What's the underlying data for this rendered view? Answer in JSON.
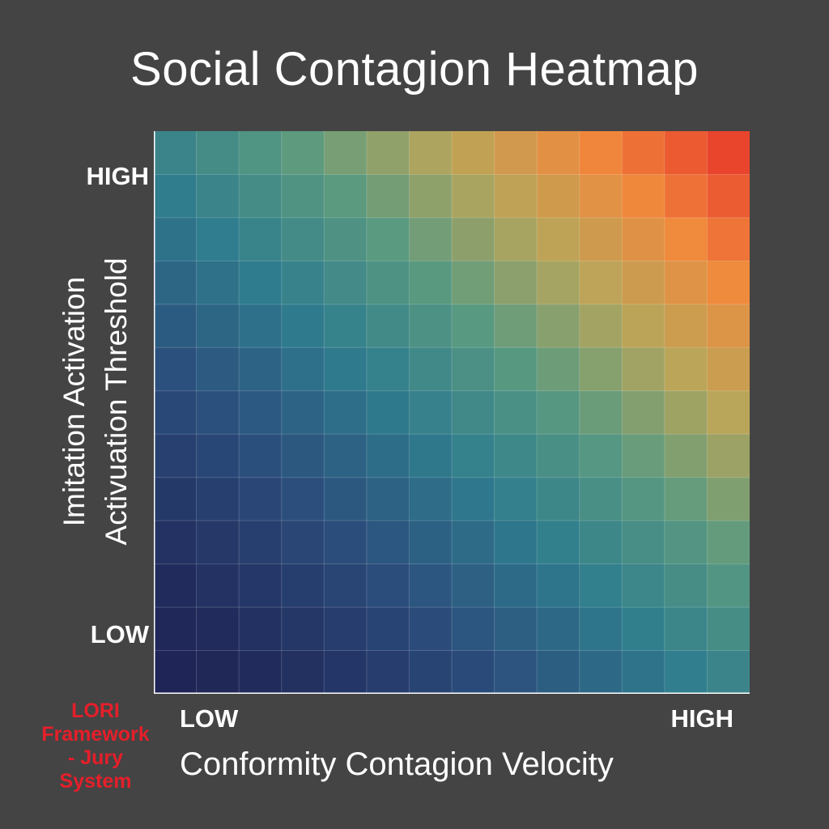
{
  "title": "Social Contagion Heatmap",
  "chart_data": {
    "type": "heatmap",
    "rows": 13,
    "cols": 14,
    "x_axis": {
      "label": "Conformity Contagion Velocity",
      "tick_low": "LOW",
      "tick_high": "HIGH"
    },
    "y_axis": {
      "label_lines": [
        "Imitation Activation",
        "Activuation Threshold"
      ],
      "tick_low": "LOW",
      "tick_high": "HIGH"
    },
    "color_stops": [
      "#1f2556",
      "#2b4d7c",
      "#2f7d8e",
      "#5a9a80",
      "#b8a65a",
      "#f08a3c",
      "#e9442c"
    ],
    "grid": true
  },
  "stamp": {
    "lines": [
      "LORI",
      "Framework",
      "- Jury",
      "System"
    ],
    "color": "#e51f2a"
  },
  "colors": {
    "background": "#444444",
    "text": "#ffffff"
  }
}
